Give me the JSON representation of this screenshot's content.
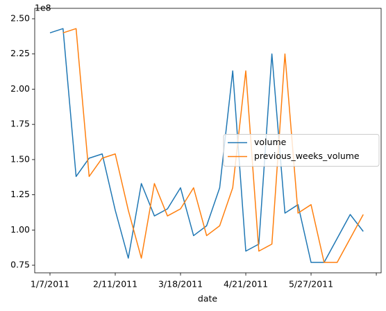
{
  "chart_data": {
    "type": "line",
    "xlabel": "date",
    "y_offset_label": "1e8",
    "categories": [
      "1/7/2011",
      null,
      null,
      null,
      null,
      "2/11/2011",
      null,
      null,
      null,
      null,
      "3/18/2011",
      null,
      null,
      null,
      null,
      "4/21/2011",
      null,
      null,
      null,
      null,
      "5/27/2011",
      null,
      null,
      null,
      null
    ],
    "xticks": [
      0,
      5,
      10,
      15,
      20,
      25
    ],
    "xlim": [
      -1.17,
      25.37
    ],
    "series": [
      {
        "name": "volume",
        "color": "#1f77b4",
        "values": [
          2.4,
          2.43,
          1.38,
          1.51,
          1.54,
          1.14,
          0.8,
          1.33,
          1.1,
          1.15,
          1.3,
          0.96,
          1.03,
          1.3,
          2.13,
          0.85,
          0.9,
          2.25,
          1.12,
          1.18,
          0.77,
          0.77,
          0.94,
          1.11,
          0.99
        ]
      },
      {
        "name": "previous_weeks_volume",
        "color": "#ff7f0e",
        "values": [
          null,
          2.4,
          2.43,
          1.38,
          1.51,
          1.54,
          1.14,
          0.8,
          1.33,
          1.1,
          1.15,
          1.3,
          0.96,
          1.03,
          1.3,
          2.13,
          0.85,
          0.9,
          2.25,
          1.12,
          1.18,
          0.77,
          0.77,
          0.94,
          1.11
        ]
      }
    ],
    "ylim": [
      0.696,
      2.574
    ],
    "yticks": [
      {
        "value": 0.75,
        "label": "0.75"
      },
      {
        "value": 1.0,
        "label": "1.00"
      },
      {
        "value": 1.25,
        "label": "1.25"
      },
      {
        "value": 1.5,
        "label": "1.50"
      },
      {
        "value": 1.75,
        "label": "1.75"
      },
      {
        "value": 2.0,
        "label": "2.00"
      },
      {
        "value": 2.25,
        "label": "2.25"
      },
      {
        "value": 2.5,
        "label": "2.50"
      }
    ],
    "legend": "center right"
  }
}
